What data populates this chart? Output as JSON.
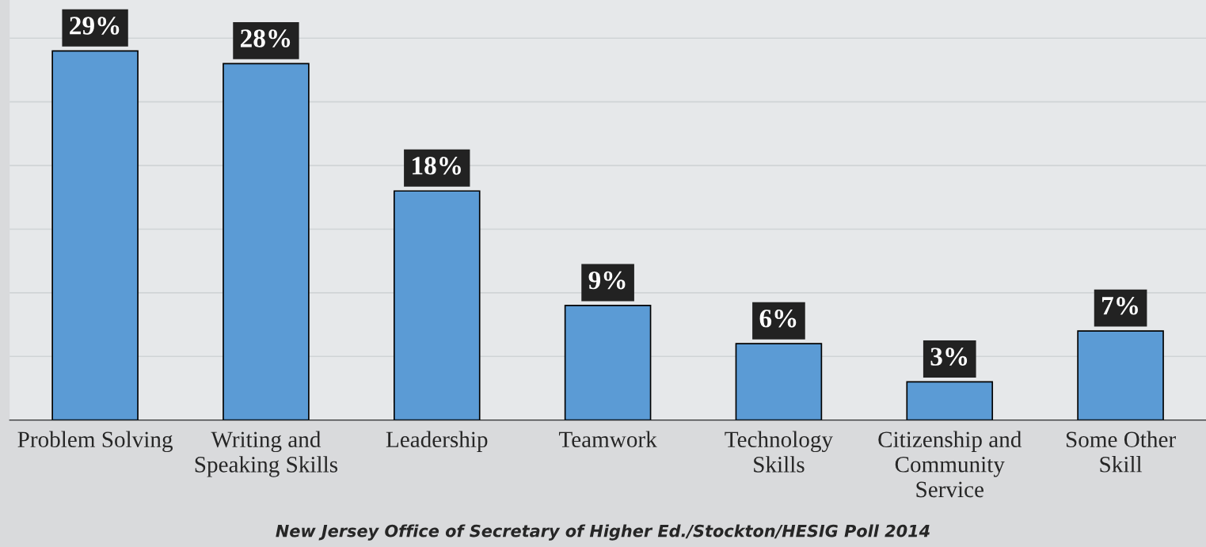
{
  "chart_data": {
    "type": "bar",
    "categories": [
      "Problem Solving",
      "Writing and\nSpeaking Skills",
      "Leadership",
      "Teamwork",
      "Technology\nSkills",
      "Citizenship and\nCommunity\nService",
      "Some Other\nSkill"
    ],
    "values": [
      29,
      28,
      18,
      9,
      6,
      3,
      7
    ],
    "value_labels": [
      "29%",
      "28%",
      "18%",
      "9%",
      "6%",
      "3%",
      "7%"
    ],
    "color": "#5b9bd5",
    "ylim": [
      0,
      33
    ],
    "yticks": [
      {
        "value": 0,
        "label": null
      },
      {
        "value": 5,
        "label": null
      },
      {
        "value": 10,
        "label": null
      },
      {
        "value": 15,
        "label": null
      },
      {
        "value": 20,
        "label": null
      },
      {
        "value": 25,
        "label": null
      },
      {
        "value": 30,
        "label": null
      }
    ],
    "grid": "y",
    "annotations": [
      "New Jersey Office of Secretary of Higher Ed./Stockton/HESIG Poll 2014"
    ]
  }
}
